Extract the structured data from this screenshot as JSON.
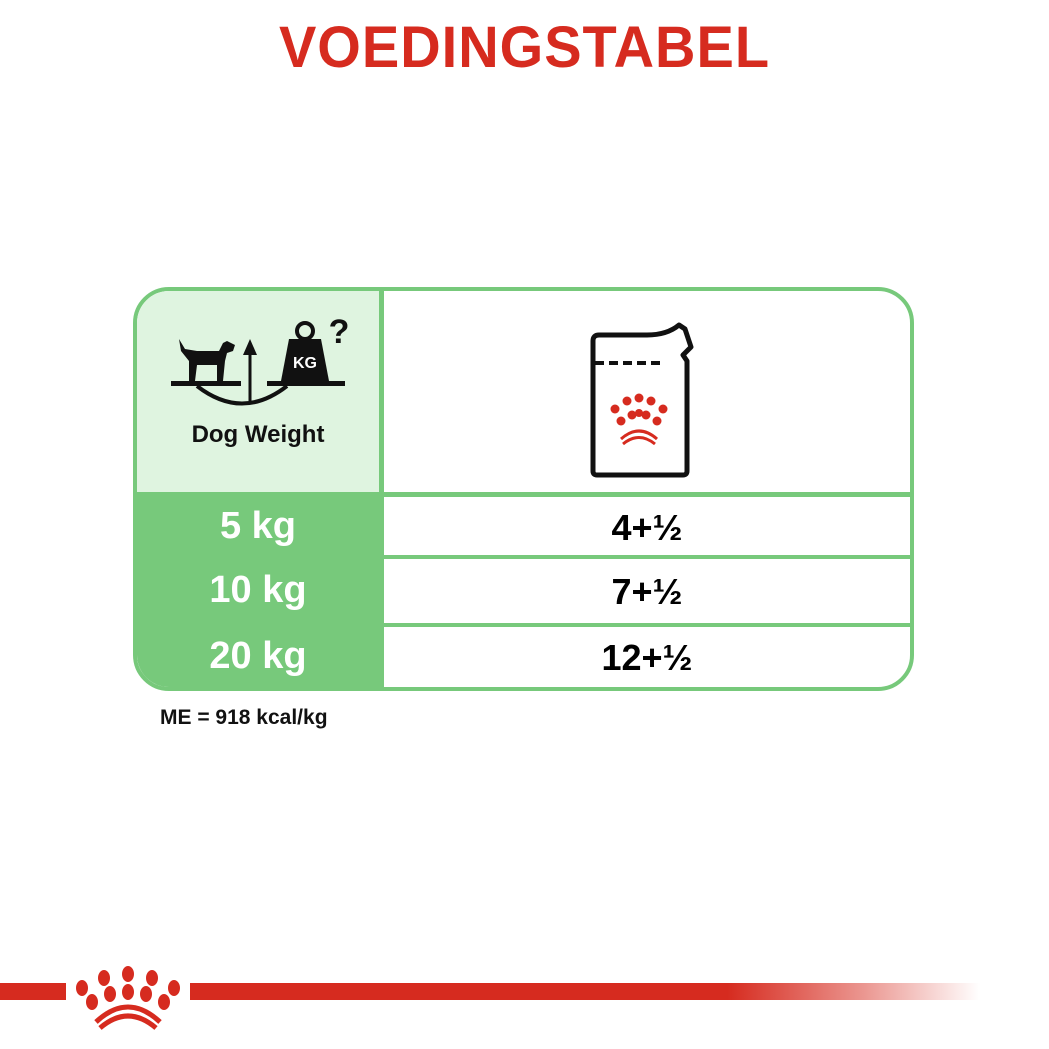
{
  "title": "VOEDINGSTABEL",
  "table": {
    "header": {
      "weight_label": "Dog Weight",
      "weight_icon": "dog-scale-kg-icon",
      "weight_icon_text": "KG",
      "portion_icon": "wet-food-pouch-icon"
    },
    "rows": [
      {
        "weight": "5 kg",
        "portion": "4+½"
      },
      {
        "weight": "10 kg",
        "portion": "7+½"
      },
      {
        "weight": "20 kg",
        "portion": "12+½"
      }
    ]
  },
  "note": "ME = 918 kcal/kg",
  "colors": {
    "brand_red": "#d62b1f",
    "green": "#77c97b",
    "light_green": "#dff4e0"
  }
}
